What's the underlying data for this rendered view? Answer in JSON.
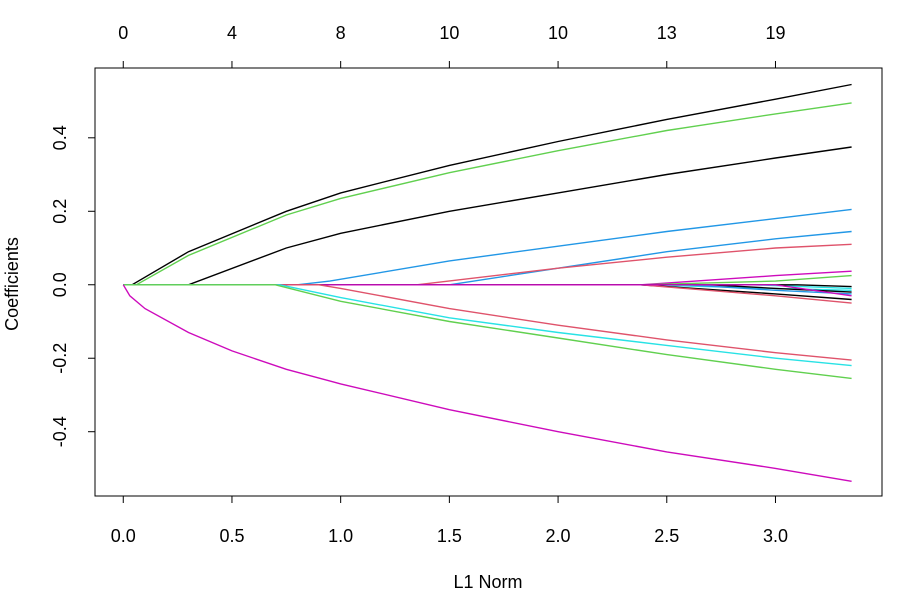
{
  "chart_data": {
    "type": "line",
    "title": "",
    "xlabel": "L1 Norm",
    "ylabel": "Coefficients",
    "xlim": [
      -0.13,
      3.49
    ],
    "ylim": [
      -0.575,
      0.59
    ],
    "x_ticks": [
      "0.0",
      "0.5",
      "1.0",
      "1.5",
      "2.0",
      "2.5",
      "3.0"
    ],
    "x_tick_values": [
      0,
      0.5,
      1.0,
      1.5,
      2.0,
      2.5,
      3.0
    ],
    "y_ticks": [
      "-0.4",
      "-0.2",
      "0.0",
      "0.2",
      "0.4"
    ],
    "y_tick_values": [
      -0.4,
      -0.2,
      0.0,
      0.2,
      0.4
    ],
    "top_axis_ticks": [
      "0",
      "4",
      "8",
      "10",
      "10",
      "13",
      "19"
    ],
    "top_axis_tick_values": [
      0,
      0.5,
      1.0,
      1.5,
      2.0,
      2.5,
      3.0
    ],
    "grid": false,
    "legend": "none",
    "series": [
      {
        "color": "#000000",
        "x": [
          0,
          0.04,
          0.3,
          0.75,
          1.0,
          1.5,
          2.0,
          2.5,
          3.0,
          3.35
        ],
        "y": [
          0,
          0,
          0.09,
          0.2,
          0.25,
          0.325,
          0.39,
          0.45,
          0.505,
          0.545
        ]
      },
      {
        "color": "#61D04F",
        "x": [
          0,
          0.06,
          0.3,
          0.75,
          1.0,
          1.5,
          2.0,
          2.5,
          3.0,
          3.35
        ],
        "y": [
          0,
          0,
          0.08,
          0.19,
          0.235,
          0.305,
          0.365,
          0.42,
          0.465,
          0.495
        ]
      },
      {
        "color": "#000000",
        "x": [
          0,
          0.3,
          0.75,
          1.0,
          1.5,
          2.0,
          2.5,
          3.0,
          3.35
        ],
        "y": [
          0,
          0,
          0.1,
          0.14,
          0.2,
          0.25,
          0.3,
          0.345,
          0.375
        ]
      },
      {
        "color": "#2297E6",
        "x": [
          0,
          0.8,
          0.95,
          1.5,
          2.0,
          2.5,
          3.0,
          3.35
        ],
        "y": [
          0,
          0,
          0.01,
          0.065,
          0.105,
          0.145,
          0.18,
          0.205
        ]
      },
      {
        "color": "#2297E6",
        "x": [
          0,
          1.5,
          2.0,
          2.5,
          3.0,
          3.35
        ],
        "y": [
          0,
          0,
          0.045,
          0.09,
          0.125,
          0.145
        ]
      },
      {
        "color": "#DF536B",
        "x": [
          0,
          1.35,
          2.0,
          2.5,
          3.0,
          3.35
        ],
        "y": [
          0,
          0,
          0.045,
          0.075,
          0.1,
          0.11
        ]
      },
      {
        "color": "#CD0BBC",
        "x": [
          0,
          2.38,
          3.0,
          3.35
        ],
        "y": [
          0,
          0,
          0.025,
          0.037
        ]
      },
      {
        "color": "#28E2E5",
        "x": [
          0,
          2.38,
          3.0,
          3.35
        ],
        "y": [
          0,
          0,
          -0.01,
          -0.015
        ]
      },
      {
        "color": "#000000",
        "x": [
          0,
          2.38,
          3.0,
          3.35
        ],
        "y": [
          0,
          0,
          -0.025,
          -0.04
        ]
      },
      {
        "color": "#DF536B",
        "x": [
          0,
          2.38,
          3.0,
          3.35
        ],
        "y": [
          0,
          0,
          -0.03,
          -0.05
        ]
      },
      {
        "color": "#61D04F",
        "x": [
          0,
          2.38,
          3.0,
          3.35
        ],
        "y": [
          0,
          0,
          0.01,
          0.025
        ]
      },
      {
        "color": "#2297E6",
        "x": [
          0,
          2.6,
          3.0,
          3.35
        ],
        "y": [
          0,
          0,
          -0.015,
          -0.025
        ]
      },
      {
        "color": "#000000",
        "x": [
          0,
          2.7,
          3.0,
          3.35
        ],
        "y": [
          0,
          0,
          -0.01,
          -0.02
        ]
      },
      {
        "color": "#28E2E5",
        "x": [
          0,
          2.9,
          3.35
        ],
        "y": [
          0,
          0,
          -0.01
        ]
      },
      {
        "color": "#000000",
        "x": [
          0,
          3.1,
          3.35
        ],
        "y": [
          0,
          0,
          -0.005
        ]
      },
      {
        "color": "#CD0BBC",
        "x": [
          0,
          3.0,
          3.35
        ],
        "y": [
          0,
          0,
          -0.03
        ]
      },
      {
        "color": "#DF536B",
        "x": [
          0,
          0.9,
          1.0,
          1.5,
          2.0,
          2.5,
          3.0,
          3.35
        ],
        "y": [
          0,
          0,
          -0.01,
          -0.065,
          -0.11,
          -0.15,
          -0.185,
          -0.205
        ]
      },
      {
        "color": "#28E2E5",
        "x": [
          0,
          0.72,
          1.0,
          1.5,
          2.0,
          2.5,
          3.0,
          3.35
        ],
        "y": [
          0,
          0,
          -0.035,
          -0.09,
          -0.13,
          -0.165,
          -0.2,
          -0.22
        ]
      },
      {
        "color": "#61D04F",
        "x": [
          0,
          0.7,
          1.0,
          1.5,
          2.0,
          2.5,
          3.0,
          3.35
        ],
        "y": [
          0,
          0,
          -0.045,
          -0.1,
          -0.145,
          -0.19,
          -0.23,
          -0.255
        ]
      },
      {
        "color": "#CD0BBC",
        "x": [
          0,
          0.03,
          0.1,
          0.3,
          0.5,
          0.75,
          1.0,
          1.5,
          2.0,
          2.5,
          3.0,
          3.35
        ],
        "y": [
          0,
          -0.03,
          -0.065,
          -0.13,
          -0.18,
          -0.23,
          -0.27,
          -0.34,
          -0.4,
          -0.455,
          -0.5,
          -0.535
        ]
      }
    ]
  }
}
